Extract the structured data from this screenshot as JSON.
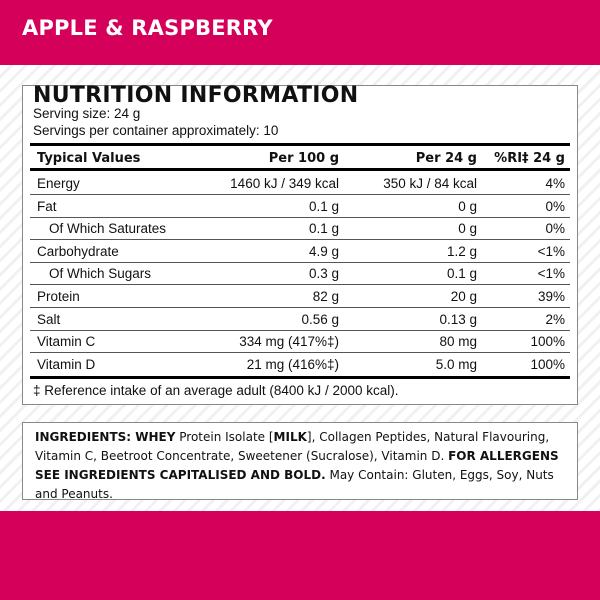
{
  "flavour": "APPLE & RASPBERRY",
  "colors": {
    "brand": "#d4005a"
  },
  "nutrition": {
    "title": "NUTRITION INFORMATION",
    "serving_size": "Serving size: 24 g",
    "servings": "Servings per container approximately: 10",
    "headers": [
      "Typical Values",
      "Per 100 g",
      "Per 24 g",
      "%RI‡ 24 g"
    ],
    "rows": [
      [
        "Energy",
        "1460 kJ / 349 kcal",
        "350 kJ / 84 kcal",
        "4%"
      ],
      [
        "Fat",
        "0.1 g",
        "0 g",
        "0%"
      ],
      [
        "Of Which Saturates",
        "0.1 g",
        "0 g",
        "0%"
      ],
      [
        "Carbohydrate",
        "4.9 g",
        "1.2 g",
        "<1%"
      ],
      [
        "Of Which Sugars",
        "0.3 g",
        "0.1 g",
        "<1%"
      ],
      [
        "Protein",
        "82 g",
        "20 g",
        "39%"
      ],
      [
        "Salt",
        "0.56 g",
        "0.13 g",
        "2%"
      ],
      [
        "Vitamin C",
        "334 mg (417%‡)",
        "80 mg",
        "100%"
      ],
      [
        "Vitamin D",
        "21 mg (416%‡)",
        "5.0 mg",
        "100%"
      ]
    ],
    "footnote": "‡ Reference intake of an average adult (8400 kJ / 2000 kcal)."
  },
  "ingredients": {
    "p1": "INGREDIENTS: WHEY",
    "p2": " Protein Isolate [",
    "p3": "MILK",
    "p4": "], Collagen Peptides, Natural Flavouring, Vitamin C, Beetroot Concentrate, Sweetener (Sucralose), Vitamin D. ",
    "p5": "FOR ALLERGENS SEE INGREDIENTS CAPITALISED AND BOLD.",
    "p6": " May Contain: Gluten, Eggs, Soy, Nuts and Peanuts."
  }
}
